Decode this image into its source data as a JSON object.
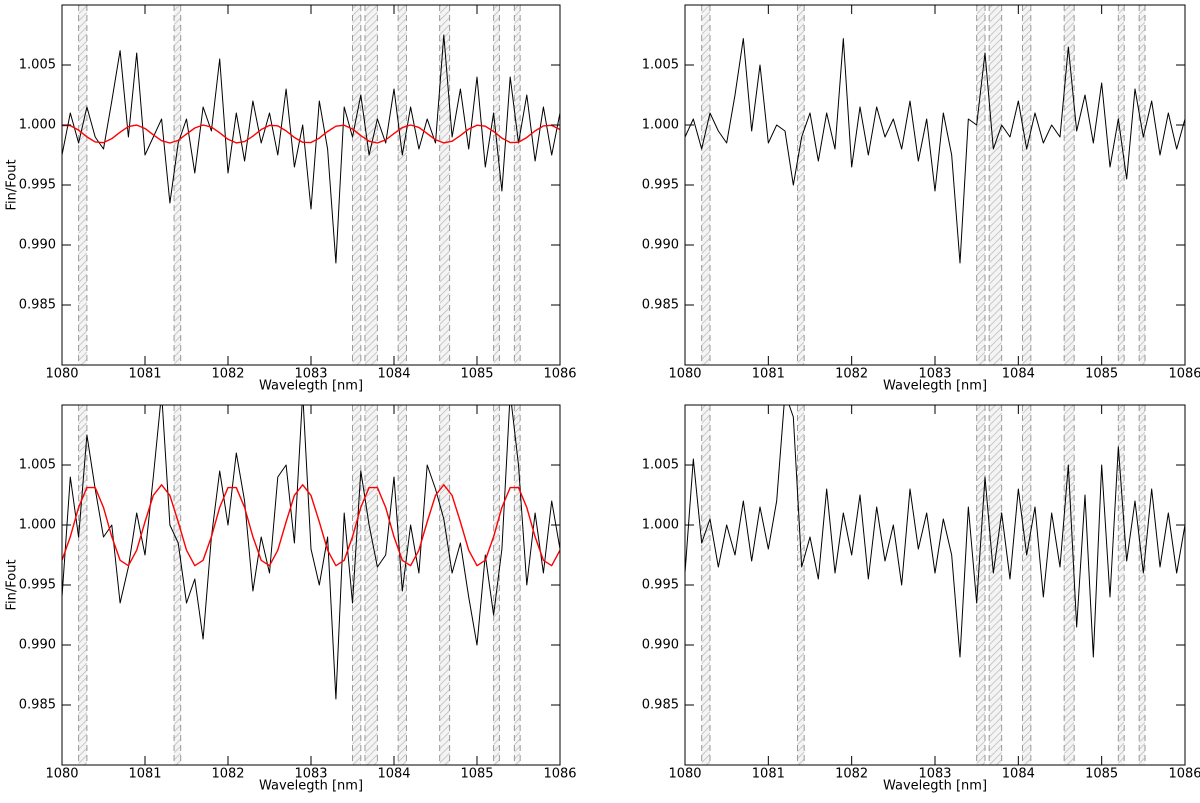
{
  "chart_data": [
    {
      "type": "line",
      "xlabel": "Wavelegth [nm]",
      "ylabel": "Fin/Fout",
      "xlim": [
        1080,
        1086
      ],
      "xticks": [
        1080,
        1081,
        1082,
        1083,
        1084,
        1085,
        1086
      ],
      "ylim": [
        0.98,
        1.01
      ],
      "yticks": [
        0.985,
        {
          "value": 0.99,
          "label": "0.990"
        },
        0.995,
        {
          "value": 1,
          "label": "1.000"
        },
        1.005
      ],
      "bands": [
        [
          1080.2,
          1080.3
        ],
        [
          1081.35,
          1081.43
        ],
        [
          1083.5,
          1083.6
        ],
        [
          1083.65,
          1083.8
        ],
        [
          1084.05,
          1084.15
        ],
        [
          1084.55,
          1084.67
        ],
        [
          1085.2,
          1085.27
        ],
        [
          1085.45,
          1085.52
        ]
      ],
      "x": [
        1080,
        1080.1,
        1080.2,
        1080.3,
        1080.4,
        1080.5,
        1080.6,
        1080.7,
        1080.8,
        1080.9,
        1081,
        1081.1,
        1081.2,
        1081.3,
        1081.4,
        1081.5,
        1081.6,
        1081.7,
        1081.8,
        1081.9,
        1082,
        1082.1,
        1082.2,
        1082.3,
        1082.4,
        1082.5,
        1082.6,
        1082.7,
        1082.8,
        1082.9,
        1083,
        1083.1,
        1083.2,
        1083.3,
        1083.4,
        1083.5,
        1083.6,
        1083.7,
        1083.8,
        1083.9,
        1084,
        1084.1,
        1084.2,
        1084.3,
        1084.4,
        1084.5,
        1084.6,
        1084.7,
        1084.8,
        1084.9,
        1085,
        1085.1,
        1085.2,
        1085.3,
        1085.4,
        1085.5,
        1085.6,
        1085.7,
        1085.8,
        1085.9,
        1086
      ],
      "series": [
        {
          "color": "#000000",
          "values": [
            0.9975,
            1.001,
            0.9985,
            1.0015,
            0.999,
            0.998,
            1.002,
            1.0062,
            0.999,
            1.006,
            0.9975,
            0.999,
            1.0005,
            0.9935,
            0.9985,
            1.0005,
            0.996,
            1.0015,
            0.9995,
            1.0055,
            0.996,
            1.001,
            0.997,
            1.002,
            0.9985,
            1.001,
            0.9975,
            1.003,
            0.9965,
            1.0,
            0.993,
            1.002,
            0.998,
            0.9885,
            1.0015,
            0.999,
            1.0025,
            0.9975,
            1.0005,
            0.9985,
            1.003,
            0.9975,
            1.0015,
            0.998,
            1.0005,
            0.9985,
            1.0075,
            0.999,
            1.003,
            0.998,
            1.004,
            0.9965,
            1.001,
            0.9945,
            1.004,
            0.9985,
            1.0025,
            0.997,
            1.0015,
            0.9975,
            1.001
          ]
        },
        {
          "color": "#ff0000",
          "values": [
            0.99995,
            0.99995,
            0.99957,
            0.99901,
            0.99859,
            0.99853,
            0.99886,
            0.9994,
            0.99987,
            0.99999,
            0.99971,
            0.99918,
            0.99869,
            0.9985,
            0.99872,
            0.99924,
            0.99975,
            1.0,
            0.99983,
            0.99935,
            0.99881,
            0.99851,
            0.99862,
            0.99907,
            0.99962,
            0.99997,
            0.99993,
            0.99951,
            0.99896,
            0.99856,
            0.99854,
            0.99891,
            0.99946,
            0.9999,
            0.99998,
            0.99967,
            0.99912,
            0.99865,
            0.9985,
            0.99876,
            0.99929,
            0.99979,
            1.0,
            0.9998,
            0.99929,
            0.99877,
            0.99851,
            0.99865,
            0.99912,
            0.99966,
            0.99998,
            0.9999,
            0.99946,
            0.99891,
            0.99854,
            0.99856,
            0.99896,
            0.99951,
            0.99992,
            0.99997,
            0.99962
          ]
        }
      ]
    },
    {
      "type": "line",
      "xlabel": "Wavelegth [nm]",
      "xlim": [
        1080,
        1086
      ],
      "xticks": [
        1080,
        1081,
        1082,
        1083,
        1084,
        1085,
        1086
      ],
      "ylim": [
        0.98,
        1.01
      ],
      "yticks": [
        0.985,
        {
          "value": 0.99,
          "label": "0.990"
        },
        0.995,
        {
          "value": 1,
          "label": "1.000"
        },
        1.005
      ],
      "bands": [
        [
          1080.2,
          1080.3
        ],
        [
          1081.35,
          1081.43
        ],
        [
          1083.5,
          1083.6
        ],
        [
          1083.65,
          1083.8
        ],
        [
          1084.05,
          1084.15
        ],
        [
          1084.55,
          1084.67
        ],
        [
          1085.2,
          1085.27
        ],
        [
          1085.45,
          1085.52
        ]
      ],
      "x": [
        1080,
        1080.1,
        1080.2,
        1080.3,
        1080.4,
        1080.5,
        1080.6,
        1080.7,
        1080.8,
        1080.9,
        1081,
        1081.1,
        1081.2,
        1081.3,
        1081.4,
        1081.5,
        1081.6,
        1081.7,
        1081.8,
        1081.9,
        1082,
        1082.1,
        1082.2,
        1082.3,
        1082.4,
        1082.5,
        1082.6,
        1082.7,
        1082.8,
        1082.9,
        1083,
        1083.1,
        1083.2,
        1083.3,
        1083.4,
        1083.5,
        1083.6,
        1083.7,
        1083.8,
        1083.9,
        1084,
        1084.1,
        1084.2,
        1084.3,
        1084.4,
        1084.5,
        1084.6,
        1084.7,
        1084.8,
        1084.9,
        1085,
        1085.1,
        1085.2,
        1085.3,
        1085.4,
        1085.5,
        1085.6,
        1085.7,
        1085.8,
        1085.9,
        1086
      ],
      "series": [
        {
          "color": "#000000",
          "values": [
            0.999,
            1.0005,
            0.998,
            1.001,
            0.9995,
            0.9985,
            1.0025,
            1.0072,
            0.9995,
            1.005,
            0.9985,
            1.0,
            0.9995,
            0.995,
            0.999,
            1.001,
            0.997,
            1.001,
            0.998,
            1.0072,
            0.9965,
            1.0015,
            0.9975,
            1.0015,
            0.999,
            1.0005,
            0.998,
            1.002,
            0.997,
            1.0005,
            0.9945,
            1.001,
            0.9975,
            0.9885,
            1.0005,
            1.0,
            1.006,
            0.998,
            1.0,
            0.999,
            1.002,
            0.998,
            1.001,
            0.9985,
            1.0,
            0.999,
            1.0065,
            0.9995,
            1.0025,
            0.9985,
            1.0035,
            0.9965,
            1.0005,
            0.9955,
            1.003,
            0.999,
            1.002,
            0.9975,
            1.001,
            0.998,
            1.0005
          ]
        }
      ]
    },
    {
      "type": "line",
      "xlabel": "Wavelegth [nm]",
      "ylabel": "Fin/Fout",
      "xlim": [
        1080,
        1086
      ],
      "xticks": [
        1080,
        1081,
        1082,
        1083,
        1084,
        1085,
        1086
      ],
      "ylim": [
        0.98,
        1.01
      ],
      "yticks": [
        0.985,
        {
          "value": 0.99,
          "label": "0.990"
        },
        0.995,
        {
          "value": 1,
          "label": "1.000"
        },
        1.005
      ],
      "bands": [
        [
          1080.2,
          1080.3
        ],
        [
          1081.35,
          1081.43
        ],
        [
          1083.5,
          1083.6
        ],
        [
          1083.65,
          1083.8
        ],
        [
          1084.05,
          1084.15
        ],
        [
          1084.55,
          1084.67
        ],
        [
          1085.2,
          1085.27
        ],
        [
          1085.45,
          1085.52
        ]
      ],
      "x": [
        1080,
        1080.1,
        1080.2,
        1080.3,
        1080.4,
        1080.5,
        1080.6,
        1080.7,
        1080.8,
        1080.9,
        1081,
        1081.1,
        1081.2,
        1081.3,
        1081.4,
        1081.5,
        1081.6,
        1081.7,
        1081.8,
        1081.9,
        1082,
        1082.1,
        1082.2,
        1082.3,
        1082.4,
        1082.5,
        1082.6,
        1082.7,
        1082.8,
        1082.9,
        1083,
        1083.1,
        1083.2,
        1083.3,
        1083.4,
        1083.5,
        1083.6,
        1083.7,
        1083.8,
        1083.9,
        1084,
        1084.1,
        1084.2,
        1084.3,
        1084.4,
        1084.5,
        1084.6,
        1084.7,
        1084.8,
        1084.9,
        1085,
        1085.1,
        1085.2,
        1085.3,
        1085.4,
        1085.5,
        1085.6,
        1085.7,
        1085.8,
        1085.9,
        1086
      ],
      "series": [
        {
          "color": "#000000",
          "values": [
            0.994,
            1.004,
            0.999,
            1.0075,
            1.003,
            0.999,
            1.0,
            0.9935,
            0.9965,
            1.001,
            0.9975,
            1.004,
            1.011,
            1.0,
            0.9985,
            0.9935,
            0.9955,
            0.9905,
            0.999,
            1.0045,
            1.0,
            1.006,
            1.002,
            0.9945,
            0.999,
            0.996,
            1.004,
            1.005,
            0.9985,
            1.011,
            0.998,
            0.995,
            0.999,
            0.9855,
            1.001,
            0.9935,
            1.0045,
            1.0,
            0.9965,
            0.9975,
            1.004,
            0.9945,
            1.0,
            0.996,
            1.005,
            1.003,
            1.0005,
            0.996,
            0.9985,
            0.994,
            0.99,
            0.9975,
            0.9925,
            0.998,
            1.011,
            1.005,
            0.995,
            1.001,
            0.996,
            1.002,
            0.998
          ]
        },
        {
          "color": "#ff0000",
          "values": [
            0.99706,
            0.99902,
            1.00147,
            1.00312,
            1.00312,
            1.00146,
            0.99902,
            0.99706,
            0.99661,
            0.9979,
            1.00026,
            1.00247,
            1.00335,
            1.00246,
            1.00026,
            0.9979,
            0.99661,
            0.99706,
            0.99902,
            1.00147,
            1.00312,
            1.00312,
            1.00146,
            0.99902,
            0.99706,
            0.99661,
            0.9979,
            1.00026,
            1.00247,
            1.00335,
            1.00246,
            1.00026,
            0.9979,
            0.99661,
            0.99706,
            0.99902,
            1.00147,
            1.00312,
            1.00312,
            1.00146,
            0.99902,
            0.99706,
            0.99661,
            0.9979,
            1.00026,
            1.00247,
            1.00335,
            1.00246,
            1.00026,
            0.9979,
            0.99661,
            0.99706,
            0.99902,
            1.00147,
            1.00312,
            1.00312,
            1.00146,
            0.99902,
            0.99706,
            0.99661,
            0.9979
          ]
        }
      ]
    },
    {
      "type": "line",
      "xlabel": "Wavelegth [nm]",
      "xlim": [
        1080,
        1086
      ],
      "xticks": [
        1080,
        1081,
        1082,
        1083,
        1084,
        1085,
        1086
      ],
      "ylim": [
        0.98,
        1.01
      ],
      "yticks": [
        0.985,
        {
          "value": 0.99,
          "label": "0.990"
        },
        0.995,
        {
          "value": 1,
          "label": "1.000"
        },
        1.005
      ],
      "bands": [
        [
          1080.2,
          1080.3
        ],
        [
          1081.35,
          1081.43
        ],
        [
          1083.5,
          1083.6
        ],
        [
          1083.65,
          1083.8
        ],
        [
          1084.05,
          1084.15
        ],
        [
          1084.55,
          1084.67
        ],
        [
          1085.2,
          1085.27
        ],
        [
          1085.45,
          1085.52
        ]
      ],
      "x": [
        1080,
        1080.1,
        1080.2,
        1080.3,
        1080.4,
        1080.5,
        1080.6,
        1080.7,
        1080.8,
        1080.9,
        1081,
        1081.1,
        1081.2,
        1081.3,
        1081.4,
        1081.5,
        1081.6,
        1081.7,
        1081.8,
        1081.9,
        1082,
        1082.1,
        1082.2,
        1082.3,
        1082.4,
        1082.5,
        1082.6,
        1082.7,
        1082.8,
        1082.9,
        1083,
        1083.1,
        1083.2,
        1083.3,
        1083.4,
        1083.5,
        1083.6,
        1083.7,
        1083.8,
        1083.9,
        1084,
        1084.1,
        1084.2,
        1084.3,
        1084.4,
        1084.5,
        1084.6,
        1084.7,
        1084.8,
        1084.9,
        1085,
        1085.1,
        1085.2,
        1085.3,
        1085.4,
        1085.5,
        1085.6,
        1085.7,
        1085.8,
        1085.9,
        1086
      ],
      "series": [
        {
          "color": "#000000",
          "values": [
            0.996,
            1.0055,
            0.9985,
            1.0005,
            0.9965,
            1.0,
            0.9975,
            1.002,
            0.997,
            1.0015,
            0.998,
            1.002,
            1.011,
            1.009,
            0.9965,
            0.999,
            0.9955,
            1.003,
            0.996,
            1.001,
            0.9975,
            1.0025,
            0.9955,
            1.0015,
            0.997,
            1.0,
            0.995,
            1.003,
            0.998,
            1.001,
            0.996,
            1.0005,
            0.9975,
            0.989,
            1.0015,
            0.9935,
            1.004,
            0.996,
            1.001,
            0.9955,
            1.003,
            0.9975,
            1.0015,
            0.994,
            1.001,
            0.9965,
            1.005,
            0.9915,
            1.0025,
            0.989,
            1.005,
            0.994,
            1.0065,
            0.997,
            1.002,
            0.996,
            1.003,
            0.9965,
            1.001,
            0.996,
            1.0
          ]
        }
      ]
    }
  ]
}
